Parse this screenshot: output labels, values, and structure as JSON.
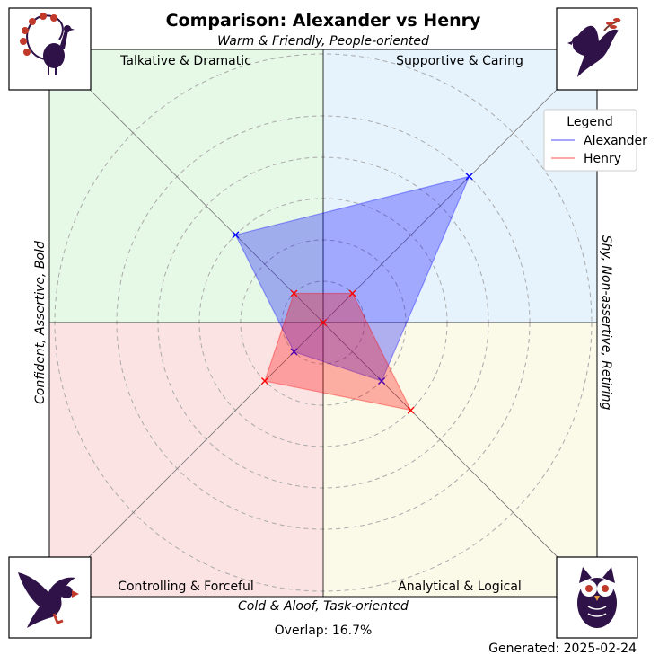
{
  "title": "Comparison: Alexander vs Henry",
  "axes": {
    "top": "Warm & Friendly, People-oriented",
    "bottom": "Cold & Aloof, Task-oriented",
    "left": "Confident, Assertive, Bold",
    "right": "Shy, Non-assertive, Retiring"
  },
  "quadrants": [
    {
      "key": "tl",
      "label": "Talkative & Dramatic",
      "color": "#e6f8e6",
      "icon": "peacock-icon"
    },
    {
      "key": "tr",
      "label": "Supportive & Caring",
      "color": "#e6f3fd",
      "icon": "dove-icon"
    },
    {
      "key": "bl",
      "label": "Controlling & Forceful",
      "color": "#fbe3e4",
      "icon": "eagle-icon"
    },
    {
      "key": "br",
      "label": "Analytical & Logical",
      "color": "#fbf9e8",
      "icon": "owl-icon"
    }
  ],
  "legend": {
    "title": "Legend"
  },
  "overlap_text": "Overlap: 16.7%",
  "generated_text": "Generated: 2025-02-24",
  "chart_data": {
    "type": "radar",
    "title": "Comparison: Alexander vs Henry",
    "axes_order": [
      "Talkative & Dramatic",
      "Supportive & Caring",
      "Analytical & Logical",
      "Controlling & Forceful"
    ],
    "range": [
      0,
      5
    ],
    "grid": true,
    "legend_position": "top-right",
    "series": [
      {
        "name": "Alexander",
        "color": "#0000ff",
        "values": [
          3,
          5,
          2,
          1
        ]
      },
      {
        "name": "Henry",
        "color": "#ff0000",
        "values": [
          1,
          1,
          3,
          2
        ]
      }
    ]
  }
}
